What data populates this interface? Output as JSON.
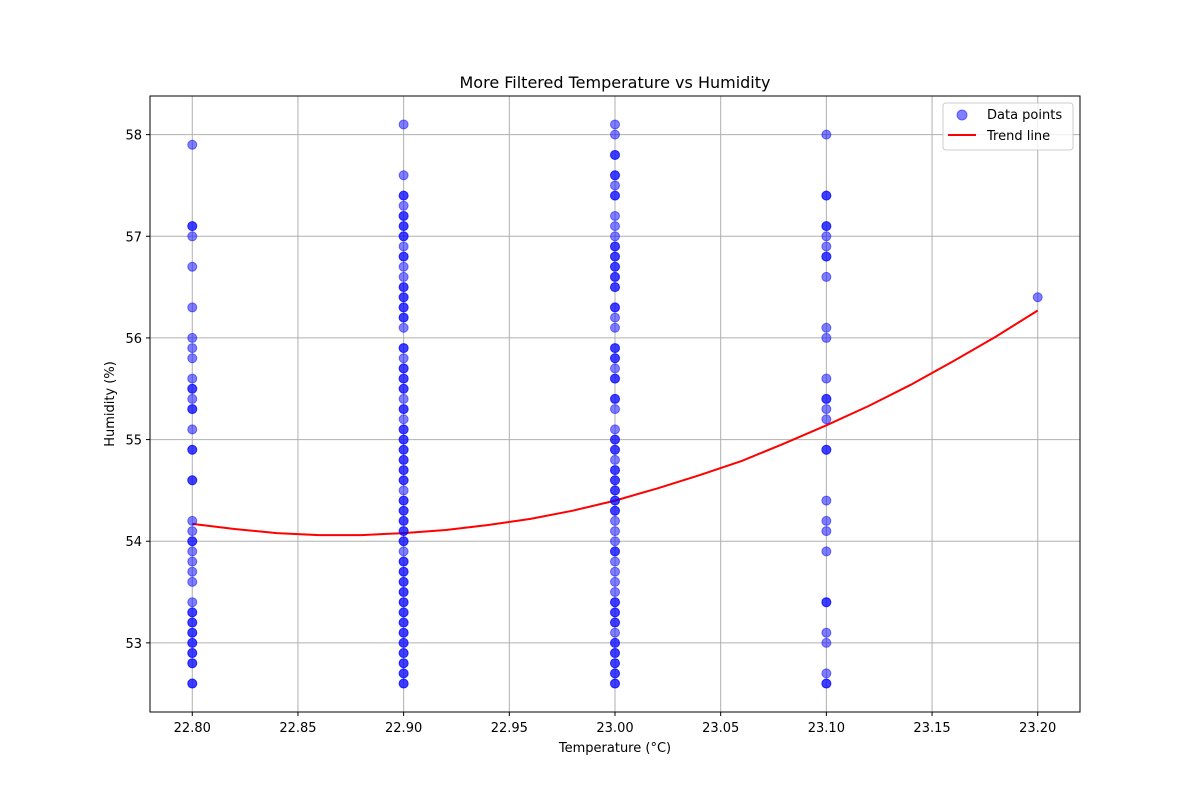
{
  "chart_data": {
    "type": "scatter",
    "title": "More Filtered Temperature vs Humidity",
    "xlabel": "Temperature (°C)",
    "ylabel": "Humidity (%)",
    "xlim": [
      22.78,
      23.22
    ],
    "ylim": [
      52.32,
      58.38
    ],
    "xticks": [
      22.8,
      22.85,
      22.9,
      22.95,
      23.0,
      23.05,
      23.1,
      23.15,
      23.2
    ],
    "xtick_labels": [
      "22.80",
      "22.85",
      "22.90",
      "22.95",
      "23.00",
      "23.05",
      "23.10",
      "23.15",
      "23.20"
    ],
    "yticks": [
      53,
      54,
      55,
      56,
      57,
      58
    ],
    "ytick_labels": [
      "53",
      "54",
      "55",
      "56",
      "57",
      "58"
    ],
    "grid": true,
    "legend_position": "top-right",
    "series": [
      {
        "name": "Data points",
        "kind": "scatter",
        "color": "#0000ff",
        "opacity": 0.5,
        "points": [
          [
            22.8,
            57.9
          ],
          [
            22.8,
            57.1
          ],
          [
            22.8,
            57.1
          ],
          [
            22.8,
            57.0
          ],
          [
            22.8,
            56.7
          ],
          [
            22.8,
            56.3
          ],
          [
            22.8,
            56.0
          ],
          [
            22.8,
            55.9
          ],
          [
            22.8,
            55.8
          ],
          [
            22.8,
            55.6
          ],
          [
            22.8,
            55.5
          ],
          [
            22.8,
            55.5
          ],
          [
            22.8,
            55.4
          ],
          [
            22.8,
            55.3
          ],
          [
            22.8,
            55.3
          ],
          [
            22.8,
            55.1
          ],
          [
            22.8,
            54.9
          ],
          [
            22.8,
            54.9
          ],
          [
            22.8,
            54.6
          ],
          [
            22.8,
            54.6
          ],
          [
            22.8,
            54.2
          ],
          [
            22.8,
            54.1
          ],
          [
            22.8,
            54.0
          ],
          [
            22.8,
            54.0
          ],
          [
            22.8,
            53.9
          ],
          [
            22.8,
            53.8
          ],
          [
            22.8,
            53.7
          ],
          [
            22.8,
            53.6
          ],
          [
            22.8,
            53.4
          ],
          [
            22.8,
            53.3
          ],
          [
            22.8,
            53.3
          ],
          [
            22.8,
            53.2
          ],
          [
            22.8,
            53.2
          ],
          [
            22.8,
            53.1
          ],
          [
            22.8,
            53.1
          ],
          [
            22.8,
            53.0
          ],
          [
            22.8,
            53.0
          ],
          [
            22.8,
            52.9
          ],
          [
            22.8,
            52.9
          ],
          [
            22.8,
            52.8
          ],
          [
            22.8,
            52.8
          ],
          [
            22.8,
            52.6
          ],
          [
            22.8,
            52.6
          ],
          [
            22.9,
            58.1
          ],
          [
            22.9,
            57.6
          ],
          [
            22.9,
            57.4
          ],
          [
            22.9,
            57.4
          ],
          [
            22.9,
            57.3
          ],
          [
            22.9,
            57.2
          ],
          [
            22.9,
            57.2
          ],
          [
            22.9,
            57.1
          ],
          [
            22.9,
            57.1
          ],
          [
            22.9,
            57.0
          ],
          [
            22.9,
            57.0
          ],
          [
            22.9,
            56.9
          ],
          [
            22.9,
            56.8
          ],
          [
            22.9,
            56.8
          ],
          [
            22.9,
            56.7
          ],
          [
            22.9,
            56.6
          ],
          [
            22.9,
            56.5
          ],
          [
            22.9,
            56.5
          ],
          [
            22.9,
            56.4
          ],
          [
            22.9,
            56.4
          ],
          [
            22.9,
            56.3
          ],
          [
            22.9,
            56.3
          ],
          [
            22.9,
            56.2
          ],
          [
            22.9,
            56.2
          ],
          [
            22.9,
            56.1
          ],
          [
            22.9,
            55.9
          ],
          [
            22.9,
            55.9
          ],
          [
            22.9,
            55.8
          ],
          [
            22.9,
            55.7
          ],
          [
            22.9,
            55.7
          ],
          [
            22.9,
            55.6
          ],
          [
            22.9,
            55.6
          ],
          [
            22.9,
            55.5
          ],
          [
            22.9,
            55.5
          ],
          [
            22.9,
            55.4
          ],
          [
            22.9,
            55.3
          ],
          [
            22.9,
            55.3
          ],
          [
            22.9,
            55.2
          ],
          [
            22.9,
            55.1
          ],
          [
            22.9,
            55.1
          ],
          [
            22.9,
            55.0
          ],
          [
            22.9,
            55.0
          ],
          [
            22.9,
            54.9
          ],
          [
            22.9,
            54.9
          ],
          [
            22.9,
            54.8
          ],
          [
            22.9,
            54.8
          ],
          [
            22.9,
            54.7
          ],
          [
            22.9,
            54.7
          ],
          [
            22.9,
            54.6
          ],
          [
            22.9,
            54.6
          ],
          [
            22.9,
            54.5
          ],
          [
            22.9,
            54.4
          ],
          [
            22.9,
            54.4
          ],
          [
            22.9,
            54.3
          ],
          [
            22.9,
            54.3
          ],
          [
            22.9,
            54.2
          ],
          [
            22.9,
            54.2
          ],
          [
            22.9,
            54.1
          ],
          [
            22.9,
            54.1
          ],
          [
            22.9,
            54.0
          ],
          [
            22.9,
            54.0
          ],
          [
            22.9,
            53.9
          ],
          [
            22.9,
            53.8
          ],
          [
            22.9,
            53.8
          ],
          [
            22.9,
            53.7
          ],
          [
            22.9,
            53.7
          ],
          [
            22.9,
            53.6
          ],
          [
            22.9,
            53.6
          ],
          [
            22.9,
            53.5
          ],
          [
            22.9,
            53.5
          ],
          [
            22.9,
            53.4
          ],
          [
            22.9,
            53.4
          ],
          [
            22.9,
            53.3
          ],
          [
            22.9,
            53.3
          ],
          [
            22.9,
            53.2
          ],
          [
            22.9,
            53.2
          ],
          [
            22.9,
            53.1
          ],
          [
            22.9,
            53.1
          ],
          [
            22.9,
            53.0
          ],
          [
            22.9,
            53.0
          ],
          [
            22.9,
            52.9
          ],
          [
            22.9,
            52.9
          ],
          [
            22.9,
            52.8
          ],
          [
            22.9,
            52.8
          ],
          [
            22.9,
            52.7
          ],
          [
            22.9,
            52.7
          ],
          [
            22.9,
            52.6
          ],
          [
            22.9,
            52.6
          ],
          [
            23.0,
            58.1
          ],
          [
            23.0,
            58.0
          ],
          [
            23.0,
            57.8
          ],
          [
            23.0,
            57.8
          ],
          [
            23.0,
            57.6
          ],
          [
            23.0,
            57.6
          ],
          [
            23.0,
            57.5
          ],
          [
            23.0,
            57.4
          ],
          [
            23.0,
            57.4
          ],
          [
            23.0,
            57.2
          ],
          [
            23.0,
            57.1
          ],
          [
            23.0,
            57.0
          ],
          [
            23.0,
            56.9
          ],
          [
            23.0,
            56.9
          ],
          [
            23.0,
            56.8
          ],
          [
            23.0,
            56.8
          ],
          [
            23.0,
            56.7
          ],
          [
            23.0,
            56.7
          ],
          [
            23.0,
            56.6
          ],
          [
            23.0,
            56.6
          ],
          [
            23.0,
            56.5
          ],
          [
            23.0,
            56.5
          ],
          [
            23.0,
            56.3
          ],
          [
            23.0,
            56.3
          ],
          [
            23.0,
            56.2
          ],
          [
            23.0,
            56.1
          ],
          [
            23.0,
            55.9
          ],
          [
            23.0,
            55.9
          ],
          [
            23.0,
            55.8
          ],
          [
            23.0,
            55.8
          ],
          [
            23.0,
            55.7
          ],
          [
            23.0,
            55.6
          ],
          [
            23.0,
            55.6
          ],
          [
            23.0,
            55.4
          ],
          [
            23.0,
            55.4
          ],
          [
            23.0,
            55.3
          ],
          [
            23.0,
            55.1
          ],
          [
            23.0,
            55.0
          ],
          [
            23.0,
            55.0
          ],
          [
            23.0,
            54.9
          ],
          [
            23.0,
            54.9
          ],
          [
            23.0,
            54.8
          ],
          [
            23.0,
            54.7
          ],
          [
            23.0,
            54.7
          ],
          [
            23.0,
            54.6
          ],
          [
            23.0,
            54.6
          ],
          [
            23.0,
            54.5
          ],
          [
            23.0,
            54.5
          ],
          [
            23.0,
            54.4
          ],
          [
            23.0,
            54.4
          ],
          [
            23.0,
            54.3
          ],
          [
            23.0,
            54.3
          ],
          [
            23.0,
            54.2
          ],
          [
            23.0,
            54.1
          ],
          [
            23.0,
            54.0
          ],
          [
            23.0,
            53.9
          ],
          [
            23.0,
            53.9
          ],
          [
            23.0,
            53.8
          ],
          [
            23.0,
            53.7
          ],
          [
            23.0,
            53.6
          ],
          [
            23.0,
            53.5
          ],
          [
            23.0,
            53.4
          ],
          [
            23.0,
            53.4
          ],
          [
            23.0,
            53.3
          ],
          [
            23.0,
            53.3
          ],
          [
            23.0,
            53.2
          ],
          [
            23.0,
            53.2
          ],
          [
            23.0,
            53.1
          ],
          [
            23.0,
            53.0
          ],
          [
            23.0,
            53.0
          ],
          [
            23.0,
            52.9
          ],
          [
            23.0,
            52.9
          ],
          [
            23.0,
            52.8
          ],
          [
            23.0,
            52.8
          ],
          [
            23.0,
            52.7
          ],
          [
            23.0,
            52.7
          ],
          [
            23.0,
            52.6
          ],
          [
            23.0,
            52.6
          ],
          [
            23.1,
            58.0
          ],
          [
            23.1,
            57.4
          ],
          [
            23.1,
            57.4
          ],
          [
            23.1,
            57.1
          ],
          [
            23.1,
            57.1
          ],
          [
            23.1,
            57.0
          ],
          [
            23.1,
            56.9
          ],
          [
            23.1,
            56.8
          ],
          [
            23.1,
            56.8
          ],
          [
            23.1,
            56.6
          ],
          [
            23.1,
            56.1
          ],
          [
            23.1,
            56.0
          ],
          [
            23.1,
            55.6
          ],
          [
            23.1,
            55.4
          ],
          [
            23.1,
            55.4
          ],
          [
            23.1,
            55.3
          ],
          [
            23.1,
            55.2
          ],
          [
            23.1,
            54.9
          ],
          [
            23.1,
            54.9
          ],
          [
            23.1,
            54.4
          ],
          [
            23.1,
            54.2
          ],
          [
            23.1,
            54.1
          ],
          [
            23.1,
            53.9
          ],
          [
            23.1,
            53.4
          ],
          [
            23.1,
            53.4
          ],
          [
            23.1,
            53.1
          ],
          [
            23.1,
            53.0
          ],
          [
            23.1,
            52.7
          ],
          [
            23.1,
            52.6
          ],
          [
            23.1,
            52.6
          ],
          [
            23.2,
            56.4
          ]
        ]
      },
      {
        "name": "Trend line",
        "kind": "line",
        "color": "#ff0000",
        "points": [
          [
            22.8,
            54.17
          ],
          [
            22.82,
            54.12
          ],
          [
            22.84,
            54.08
          ],
          [
            22.86,
            54.06
          ],
          [
            22.88,
            54.06
          ],
          [
            22.9,
            54.08
          ],
          [
            22.92,
            54.11
          ],
          [
            22.94,
            54.16
          ],
          [
            22.96,
            54.22
          ],
          [
            22.98,
            54.3
          ],
          [
            23.0,
            54.4
          ],
          [
            23.02,
            54.52
          ],
          [
            23.04,
            54.65
          ],
          [
            23.06,
            54.79
          ],
          [
            23.08,
            54.96
          ],
          [
            23.1,
            55.14
          ],
          [
            23.12,
            55.33
          ],
          [
            23.14,
            55.54
          ],
          [
            23.16,
            55.77
          ],
          [
            23.18,
            56.01
          ],
          [
            23.2,
            56.27
          ]
        ]
      }
    ]
  }
}
